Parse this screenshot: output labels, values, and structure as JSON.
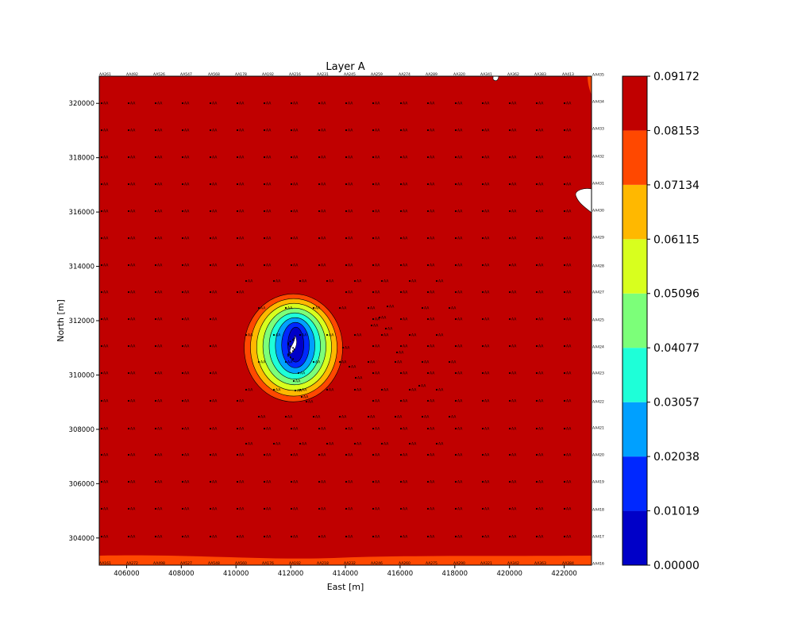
{
  "chart_data": {
    "type": "contour",
    "title": "Layer A",
    "xlabel": "East [m]",
    "ylabel": "North [m]",
    "xlim": [
      405000,
      423000
    ],
    "ylim": [
      303000,
      321000
    ],
    "x_ticks": [
      406000,
      408000,
      410000,
      412000,
      414000,
      416000,
      418000,
      420000,
      422000
    ],
    "x_tick_labels": [
      "406000",
      "408000",
      "410000",
      "412000",
      "414000",
      "416000",
      "418000",
      "420000",
      "422000"
    ],
    "y_ticks": [
      304000,
      306000,
      308000,
      310000,
      312000,
      314000,
      316000,
      318000,
      320000
    ],
    "y_tick_labels": [
      "304000",
      "306000",
      "308000",
      "310000",
      "312000",
      "314000",
      "316000",
      "318000",
      "320000"
    ],
    "colorbar": {
      "levels": [
        0.0,
        0.01019,
        0.02038,
        0.03057,
        0.04077,
        0.05096,
        0.06115,
        0.07134,
        0.08153,
        0.09172
      ],
      "tick_labels": [
        "0.00000",
        "0.01019",
        "0.02038",
        "0.03057",
        "0.04077",
        "0.05096",
        "0.06115",
        "0.07134",
        "0.08153",
        "0.09172"
      ],
      "colors": [
        "#0000c8",
        "#0028ff",
        "#00a0ff",
        "#1effd8",
        "#7cff79",
        "#d8ff1e",
        "#ffb800",
        "#ff4800",
        "#c00000"
      ]
    },
    "minimum_location": [
      412100,
      311000
    ],
    "grid": false,
    "legend": "none",
    "top_labels": [
      "AA261",
      "AA492",
      "AA526",
      "AA547",
      "AA568",
      "AA178",
      "AA192",
      "AA216",
      "AA231",
      "AA245",
      "AA259",
      "AA274",
      "AA289",
      "AA320",
      "AA341",
      "AA362",
      "AA383",
      "AA413"
    ],
    "bottom_labels": [
      "AA161",
      "AA272",
      "AA498",
      "AA527",
      "AA548",
      "AA560",
      "AA176",
      "AA192",
      "AA218",
      "AA232",
      "AA246",
      "AA260",
      "AA275",
      "AA290",
      "AA321",
      "AA342",
      "AA363",
      "AA384"
    ],
    "right_labels": [
      "AA435",
      "AA434",
      "AA433",
      "AA432",
      "AA431",
      "AA430",
      "AA429",
      "AA428",
      "AA427",
      "AA425",
      "AA424",
      "AA423",
      "AA422",
      "AA421",
      "AA420",
      "AA419",
      "AA418",
      "AA417",
      "AA416"
    ],
    "station_label": "AA"
  }
}
